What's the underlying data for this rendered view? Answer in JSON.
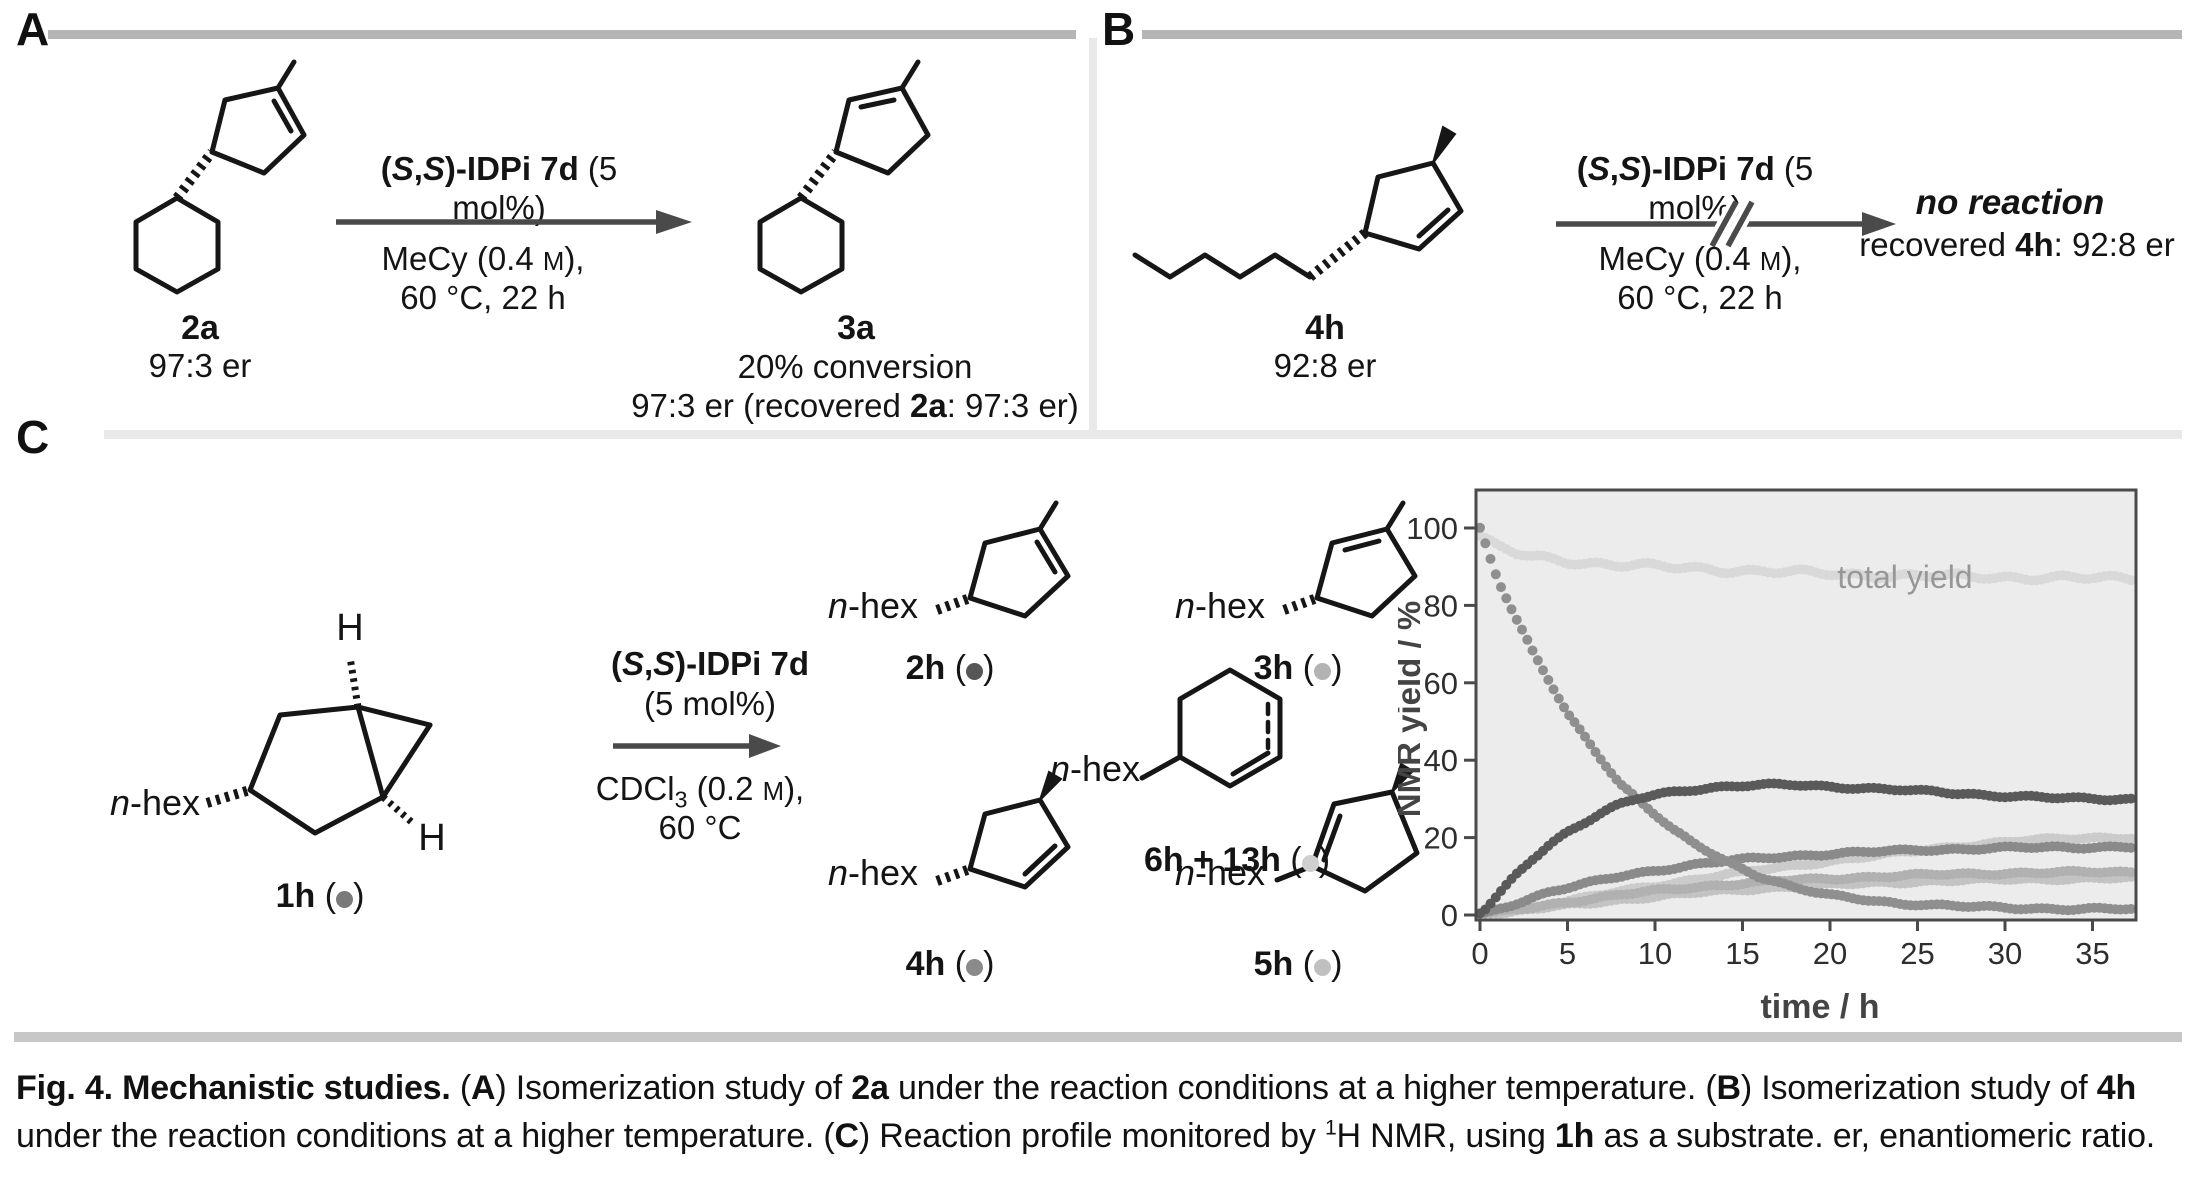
{
  "panels": {
    "a": {
      "label": "A",
      "substrate": {
        "name": "2a",
        "er": "97:3 er"
      },
      "catalyst": [
        {
          "t": "(",
          "b": 1
        },
        {
          "t": "S",
          "b": 1,
          "i": 1
        },
        {
          "t": ",",
          "b": 1
        },
        {
          "t": "S",
          "b": 1,
          "i": 1
        },
        {
          "t": ")-IDPi 7d",
          "b": 1
        },
        {
          "t": " (5 mol%)"
        }
      ],
      "solvent": [
        {
          "t": "MeCy (0.4 "
        },
        {
          "t": "M",
          "sc": 1
        },
        {
          "t": "),"
        }
      ],
      "temp": "60 °C, 22 h",
      "product": {
        "name": "3a",
        "conversion": "20% conversion",
        "er_line": [
          {
            "t": "97:3 er (recovered "
          },
          {
            "t": "2a",
            "b": 1
          },
          {
            "t": ": 97:3 er)"
          }
        ]
      }
    },
    "b": {
      "label": "B",
      "substrate": {
        "name": "4h",
        "er": "92:8 er"
      },
      "catalyst": [
        {
          "t": "(",
          "b": 1
        },
        {
          "t": "S",
          "b": 1,
          "i": 1
        },
        {
          "t": ",",
          "b": 1
        },
        {
          "t": "S",
          "b": 1,
          "i": 1
        },
        {
          "t": ")-IDPi 7d",
          "b": 1
        },
        {
          "t": " (5 mol%)"
        }
      ],
      "solvent": [
        {
          "t": "MeCy (0.4 "
        },
        {
          "t": "M",
          "sc": 1
        },
        {
          "t": "),"
        }
      ],
      "temp": "60 °C, 22 h",
      "result": {
        "title": "no reaction",
        "detail": [
          {
            "t": "recovered "
          },
          {
            "t": "4h",
            "b": 1
          },
          {
            "t": ": 92:8 er"
          }
        ]
      }
    },
    "c": {
      "label": "C",
      "catalyst_line1": [
        {
          "t": "(",
          "b": 1
        },
        {
          "t": "S",
          "b": 1,
          "i": 1
        },
        {
          "t": ",",
          "b": 1
        },
        {
          "t": "S",
          "b": 1,
          "i": 1
        },
        {
          "t": ")-IDPi 7d",
          "b": 1
        }
      ],
      "catalyst_line2": "(5 mol%)",
      "solvent": [
        {
          "t": "CDCl"
        },
        {
          "t": "3",
          "sub": 1
        },
        {
          "t": " (0.2 "
        },
        {
          "t": "M",
          "sc": 1
        },
        {
          "t": "),"
        }
      ],
      "temp": "60 °C",
      "compounds": {
        "c1h": [
          {
            "t": "1h",
            "b": 1
          },
          {
            "t": " ("
          },
          {
            "d": "#7a7a7a"
          },
          {
            "t": ")"
          }
        ],
        "c2h": [
          {
            "t": "2h",
            "b": 1
          },
          {
            "t": " ("
          },
          {
            "d": "#565656"
          },
          {
            "t": ")"
          }
        ],
        "c3h": [
          {
            "t": "3h",
            "b": 1
          },
          {
            "t": " ("
          },
          {
            "d": "#b3b3b3"
          },
          {
            "t": ")"
          }
        ],
        "c4h": [
          {
            "t": "4h",
            "b": 1
          },
          {
            "t": " ("
          },
          {
            "d": "#8a8a8a"
          },
          {
            "t": ")"
          }
        ],
        "c5h": [
          {
            "t": "5h",
            "b": 1
          },
          {
            "t": " ("
          },
          {
            "d": "#c0c0c0"
          },
          {
            "t": ")"
          }
        ],
        "c6h13h": [
          {
            "t": "6h + 13h",
            "b": 1
          },
          {
            "t": " ("
          },
          {
            "d": "#cfcfcf"
          },
          {
            "t": ")"
          }
        ]
      }
    }
  },
  "labels": {
    "nhex": [
      {
        "t": "n",
        "i": 1
      },
      {
        "t": "-hex"
      }
    ],
    "h": "H"
  },
  "chart_data": {
    "type": "scatter",
    "title": "",
    "xlabel": "time / h",
    "ylabel": "NMR yield / %",
    "annotation": "total yield",
    "xlim": [
      0,
      37.5
    ],
    "ylim": [
      -1.5,
      110
    ],
    "xticks": [
      0,
      5,
      10,
      15,
      20,
      25,
      30,
      35
    ],
    "yticks": [
      0,
      20,
      40,
      60,
      80,
      100
    ],
    "grid": false,
    "plot_bg": "#ececec",
    "x": [
      0,
      1,
      2,
      3,
      4,
      5,
      6,
      7,
      8,
      9,
      10,
      11,
      12,
      13,
      14,
      15,
      16,
      17,
      18,
      19,
      20,
      21,
      22,
      23,
      24,
      25,
      26,
      27,
      28,
      29,
      30,
      31,
      32,
      33,
      34,
      35
    ],
    "series": [
      {
        "name": "total yield",
        "color": "#d9d9d9",
        "values": [
          98,
          95,
          93.5,
          92.5,
          92,
          91.5,
          91,
          90.8,
          90.5,
          90.3,
          90,
          89.8,
          89.6,
          89.4,
          89.2,
          89,
          88.8,
          88.7,
          88.5,
          88.3,
          88.2,
          88,
          87.9,
          87.8,
          87.7,
          87.6,
          87.5,
          87.5,
          87.4,
          87.4,
          87.3,
          87.2,
          87.2,
          87.1,
          87,
          87
        ]
      },
      {
        "name": "6h + 13h",
        "color": "#cbcbcb",
        "values": [
          0,
          0.5,
          1.2,
          2,
          2.8,
          3.6,
          4.4,
          5.2,
          6,
          6.8,
          7.5,
          8.2,
          9,
          9.7,
          10.4,
          11,
          11.6,
          12.2,
          12.8,
          13.4,
          14,
          14.5,
          15,
          15.5,
          16.1,
          16.6,
          17.1,
          17.6,
          18,
          18.4,
          18.8,
          19.1,
          19.4,
          19.6,
          19.8,
          20
        ]
      },
      {
        "name": "5h",
        "color": "#c3c3c3",
        "values": [
          0,
          0.4,
          0.9,
          1.5,
          2,
          2.5,
          3,
          3.5,
          4,
          4.4,
          4.8,
          5.2,
          5.6,
          6,
          6.3,
          6.6,
          6.9,
          7.2,
          7.4,
          7.6,
          7.8,
          8,
          8.2,
          8.4,
          8.5,
          8.7,
          8.8,
          8.9,
          9,
          9.1,
          9.2,
          9.3,
          9.3,
          9.4,
          9.4,
          9.5
        ]
      },
      {
        "name": "3h",
        "color": "#b1b1b1",
        "values": [
          0,
          0.6,
          1.3,
          2,
          2.7,
          3.4,
          4,
          4.6,
          5.2,
          5.7,
          6.2,
          6.7,
          7.1,
          7.5,
          7.9,
          8.2,
          8.5,
          8.8,
          9,
          9.2,
          9.4,
          9.6,
          9.8,
          10,
          10.1,
          10.3,
          10.4,
          10.5,
          10.6,
          10.7,
          10.8,
          10.9,
          10.9,
          11,
          11,
          11.1
        ]
      },
      {
        "name": "4h",
        "color": "#8a8a8a",
        "values": [
          0,
          1.5,
          3,
          4.5,
          6,
          7,
          8,
          9,
          10,
          10.8,
          11.5,
          12.2,
          12.8,
          13.4,
          13.9,
          14.3,
          14.7,
          15,
          15.3,
          15.6,
          15.8,
          16,
          16.2,
          16.4,
          16.6,
          16.8,
          16.9,
          17,
          17.1,
          17.2,
          17.3,
          17.4,
          17.4,
          17.5,
          17.5,
          17.6
        ]
      },
      {
        "name": "1h",
        "color": "#8f8f8f",
        "values": [
          100,
          87,
          77,
          68,
          60,
          52,
          46,
          40,
          34,
          30,
          26,
          22,
          19,
          16.5,
          14,
          12,
          10,
          8.5,
          7,
          6,
          5,
          4.5,
          4,
          3.5,
          3,
          2.8,
          2.5,
          2.3,
          2.1,
          2,
          1.9,
          1.8,
          1.7,
          1.6,
          1.5,
          1.5
        ]
      },
      {
        "name": "2h",
        "color": "#5a5a5a",
        "values": [
          0,
          5,
          10,
          14.5,
          18.5,
          21.5,
          24,
          26.5,
          28.5,
          30,
          31,
          31.8,
          32.4,
          32.8,
          33.2,
          33.4,
          33.5,
          33.6,
          33.6,
          33.4,
          33.2,
          33,
          32.8,
          32.5,
          32.3,
          32,
          31.8,
          31.5,
          31.3,
          31,
          30.8,
          30.6,
          30.4,
          30.2,
          30.1,
          30
        ]
      }
    ]
  },
  "caption": {
    "parts": [
      {
        "t": "Fig. 4. Mechanistic studies. ",
        "b": 1
      },
      {
        "t": "("
      },
      {
        "t": "A",
        "b": 1
      },
      {
        "t": ") Isomerization study of "
      },
      {
        "t": "2a",
        "b": 1
      },
      {
        "t": " under the reaction conditions at a higher temperature. ("
      },
      {
        "t": "B",
        "b": 1
      },
      {
        "t": ") Isomerization study of "
      },
      {
        "t": "4h",
        "b": 1
      },
      {
        "t": " under the reaction conditions at a higher temperature. ("
      },
      {
        "t": "C",
        "b": 1
      },
      {
        "t": ") Reaction profile monitored by "
      },
      {
        "t": "1",
        "sup": 1
      },
      {
        "t": "H NMR, using "
      },
      {
        "t": "1h",
        "b": 1
      },
      {
        "t": " as a substrate. er, enantiomeric ratio."
      }
    ]
  }
}
